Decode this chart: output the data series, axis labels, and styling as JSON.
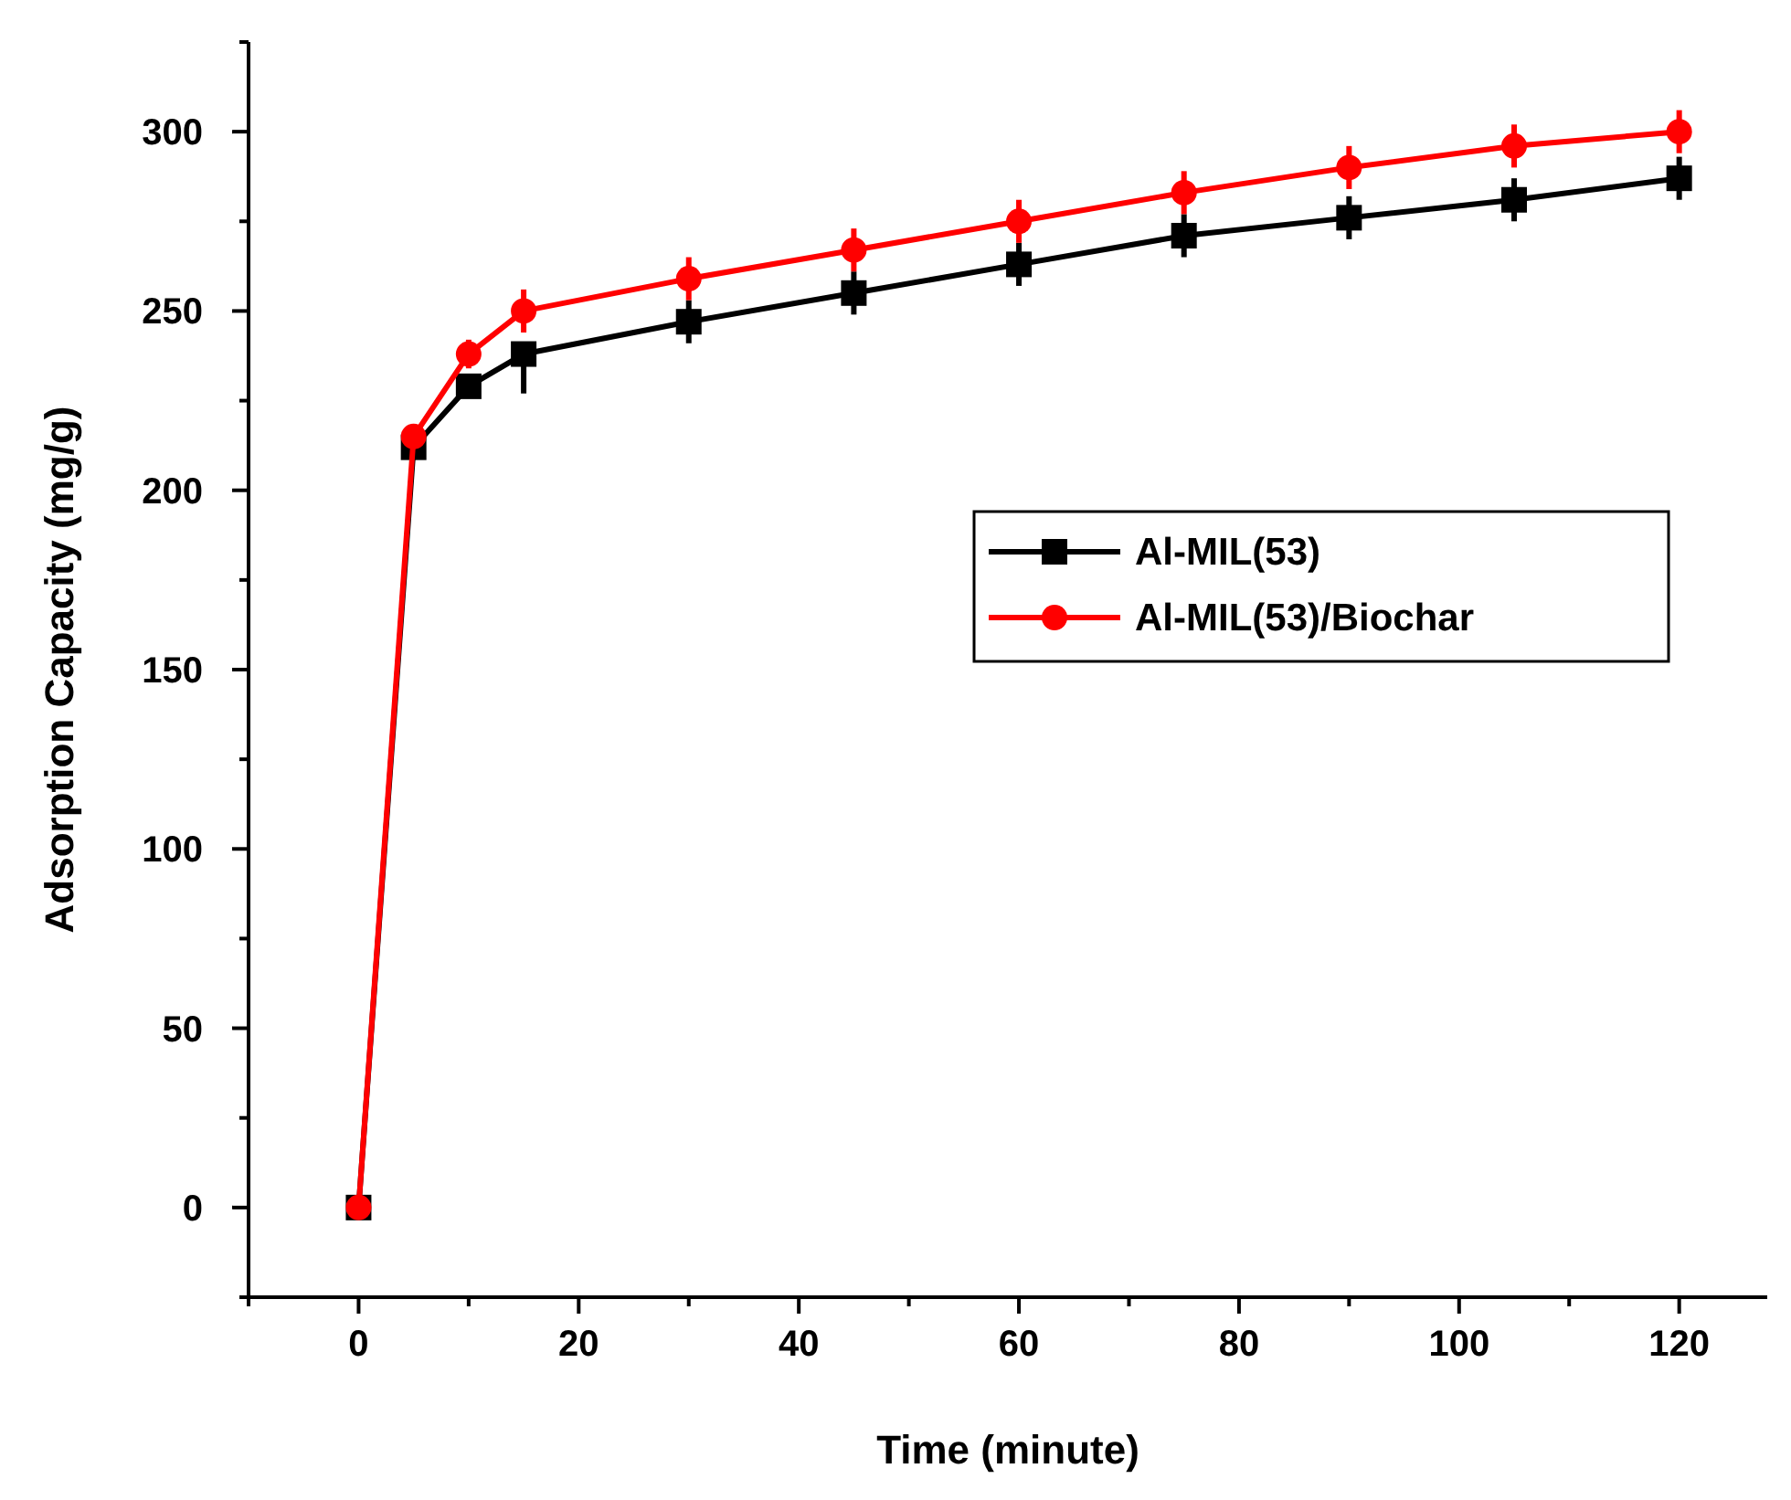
{
  "chart_data": {
    "type": "line",
    "xlabel": "Time (minute)",
    "ylabel": "Adsorption Capacity (mg/g)",
    "xlim": [
      -10,
      128
    ],
    "ylim": [
      -25,
      325
    ],
    "xticks": [
      {
        "value": -10,
        "label": null
      },
      0,
      {
        "value": 10,
        "label": null
      },
      20,
      {
        "value": 30,
        "label": null
      },
      40,
      {
        "value": 50,
        "label": null
      },
      60,
      {
        "value": 70,
        "label": null
      },
      80,
      {
        "value": 90,
        "label": null
      },
      100,
      {
        "value": 110,
        "label": null
      },
      120
    ],
    "yticks": [
      {
        "value": -25,
        "label": null
      },
      0,
      {
        "value": 25,
        "label": null
      },
      50,
      {
        "value": 75,
        "label": null
      },
      100,
      {
        "value": 125,
        "label": null
      },
      150,
      {
        "value": 175,
        "label": null
      },
      200,
      {
        "value": 225,
        "label": null
      },
      250,
      {
        "value": 275,
        "label": null
      },
      300,
      {
        "value": 325,
        "label": null
      }
    ],
    "x": [
      0,
      5,
      10,
      15,
      30,
      45,
      60,
      75,
      90,
      105,
      120
    ],
    "grid": false,
    "legend": "right",
    "line_style": "solid",
    "series": [
      {
        "name": "Al-MIL(53)",
        "color": "#000000",
        "marker": "square",
        "values": [
          0,
          212,
          229,
          238,
          247,
          255,
          263,
          271,
          276,
          281,
          287
        ],
        "errors": [
          null,
          null,
          null,
          [
            227,
            238
          ],
          6,
          6,
          6,
          6,
          6,
          6,
          6
        ]
      },
      {
        "name": "Al-MIL(53)/Biochar",
        "color": "#ff0000",
        "marker": "circle",
        "values": [
          0,
          215,
          238,
          250,
          259,
          267,
          275,
          283,
          290,
          296,
          300
        ],
        "errors": [
          null,
          null,
          4,
          6,
          6,
          6,
          6,
          6,
          6,
          6,
          6
        ]
      }
    ]
  }
}
